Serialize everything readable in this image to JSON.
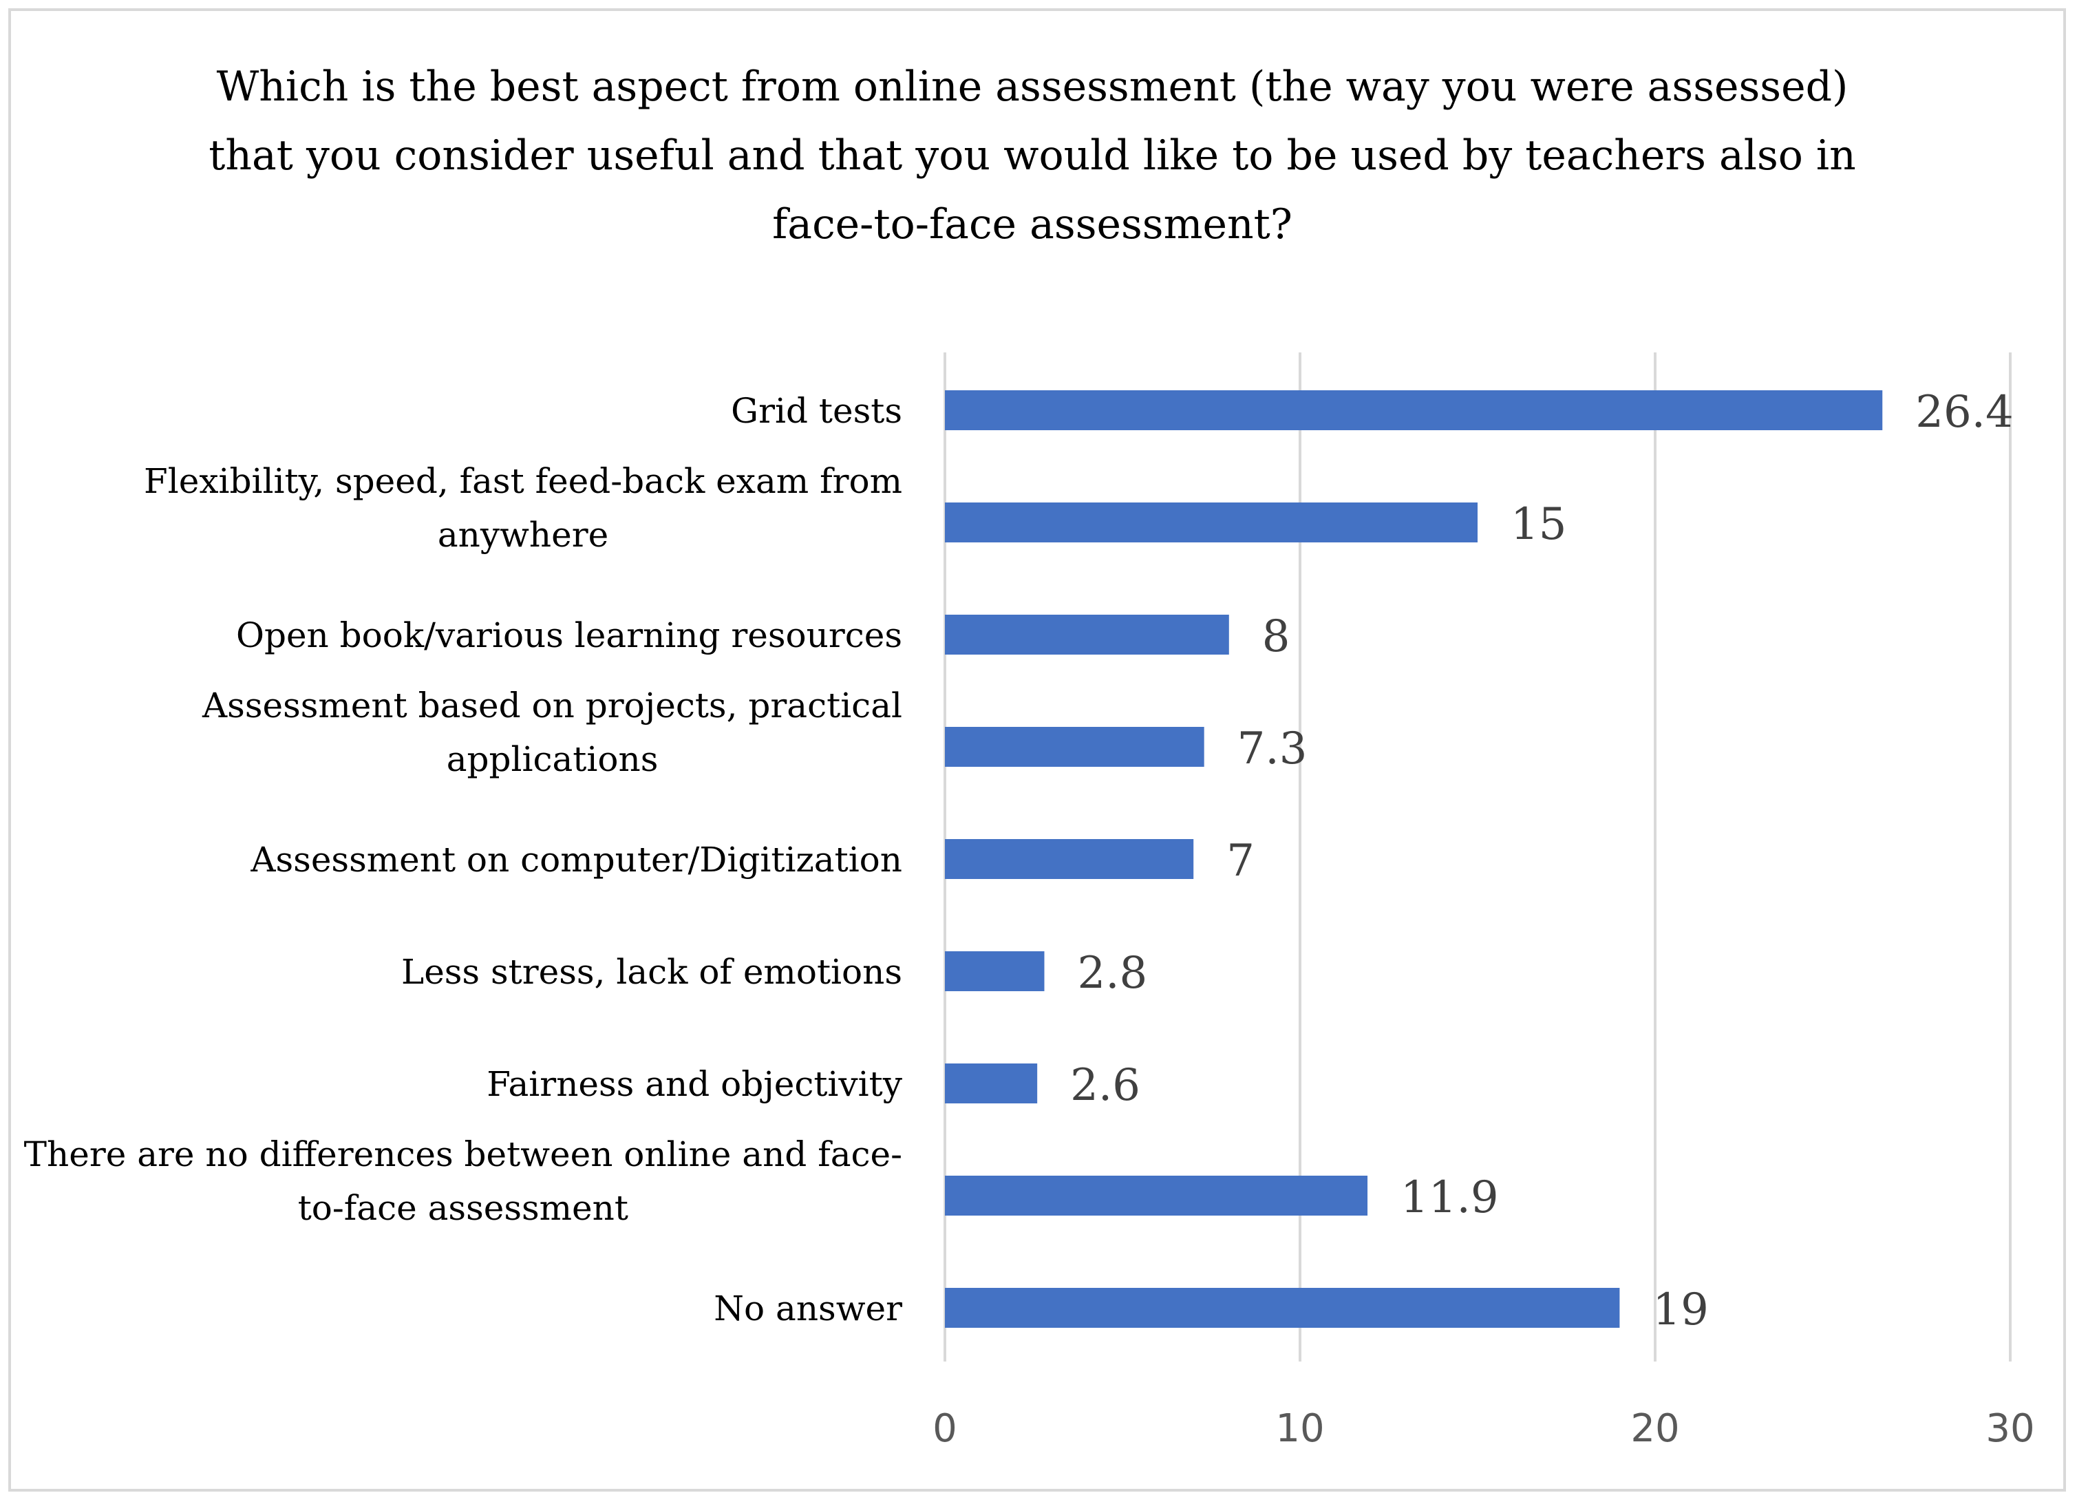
{
  "chart_data": {
    "type": "bar",
    "orientation": "horizontal",
    "title": "Which is the best aspect from online assessment (the way you were assessed) that you consider useful and that you would like to be used by teachers also in face-to-face assessment?",
    "categories": [
      [
        "Grid tests"
      ],
      [
        "Flexibility, speed, fast feed-back exam from",
        "anywhere"
      ],
      [
        "Open book/various learning resources"
      ],
      [
        "Assessment based on projects, practical",
        "applications"
      ],
      [
        "Assessment on computer/Digitization"
      ],
      [
        "Less stress, lack of emotions"
      ],
      [
        "Fairness and objectivity"
      ],
      [
        "There are no differences between online and face-",
        "to-face assessment"
      ],
      [
        "No answer"
      ]
    ],
    "values": [
      26.4,
      15,
      8,
      7.3,
      7,
      2.8,
      2.6,
      11.9,
      19
    ],
    "value_labels": [
      "26.4",
      "15",
      "8",
      "7.3",
      "7",
      "2.8",
      "2.6",
      "11.9",
      "19"
    ],
    "xlim": [
      0,
      30
    ],
    "xticks": [
      0,
      10,
      20,
      30
    ],
    "xtick_labels": [
      "0",
      "10",
      "20",
      "30"
    ],
    "grid": "vertical",
    "legend": "none",
    "bar_color": "#4472c4",
    "gridline_color": "#d9d9d9"
  }
}
